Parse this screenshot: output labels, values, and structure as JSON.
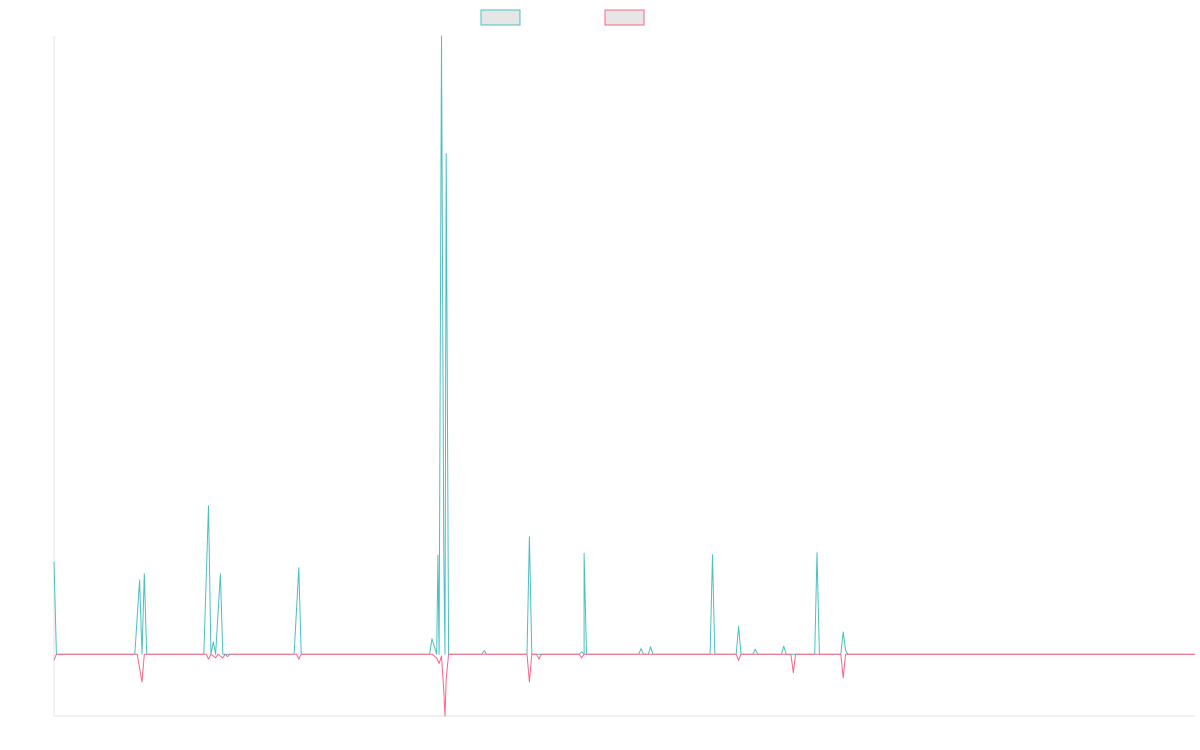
{
  "chart_data": {
    "type": "line",
    "title": "",
    "xlabel": "",
    "ylabel": "",
    "grid": false,
    "legend_placement": "top-center",
    "xlim": [
      0,
      480
    ],
    "ylim": [
      -0.1,
      1.0
    ],
    "colors": {
      "teal": "#4bc0c0",
      "pink": "#ff6384",
      "legend_fill": "#e6e6e6",
      "axis": "#e6e6e6"
    },
    "series": [
      {
        "name": "",
        "color": "#4bc0c0",
        "points": [
          [
            0,
            0.15
          ],
          [
            1,
            0.0
          ],
          [
            5,
            0.0
          ],
          [
            9,
            0.0
          ],
          [
            13,
            0.0
          ],
          [
            34,
            0.0
          ],
          [
            36,
            0.12
          ],
          [
            37,
            0.0
          ],
          [
            38,
            0.13
          ],
          [
            39,
            0.0
          ],
          [
            43,
            0.0
          ],
          [
            63,
            0.0
          ],
          [
            65,
            0.24
          ],
          [
            66,
            0.0
          ],
          [
            67,
            0.02
          ],
          [
            68,
            0.0
          ],
          [
            70,
            0.13
          ],
          [
            71,
            0.0
          ],
          [
            74,
            0.0
          ],
          [
            76,
            0.0
          ],
          [
            101,
            0.0
          ],
          [
            103,
            0.14
          ],
          [
            104,
            0.0
          ],
          [
            118,
            0.0
          ],
          [
            124,
            0.0
          ],
          [
            133,
            0.0
          ],
          [
            158,
            0.0
          ],
          [
            159,
            0.025
          ],
          [
            161,
            0.0
          ],
          [
            161.5,
            0.16
          ],
          [
            162,
            0.0
          ],
          [
            163,
            1.0
          ],
          [
            164,
            0.16
          ],
          [
            164.5,
            0.0
          ],
          [
            165,
            0.81
          ],
          [
            166,
            0.0
          ],
          [
            180,
            0.0
          ],
          [
            181,
            0.006
          ],
          [
            182,
            0.0
          ],
          [
            199,
            0.0
          ],
          [
            200,
            0.19
          ],
          [
            201,
            0.0
          ],
          [
            221,
            0.0
          ],
          [
            222,
            0.004
          ],
          [
            223,
            0.0
          ],
          [
            223,
            0.163
          ],
          [
            224,
            0.0
          ],
          [
            246,
            0.0
          ],
          [
            247,
            0.009
          ],
          [
            248,
            0.0
          ],
          [
            250,
            0.0
          ],
          [
            251,
            0.012
          ],
          [
            252,
            0.0
          ],
          [
            276,
            0.0
          ],
          [
            277,
            0.161
          ],
          [
            278,
            0.0
          ],
          [
            287,
            0.0
          ],
          [
            288,
            0.045
          ],
          [
            289,
            0.0
          ],
          [
            294,
            0.0
          ],
          [
            295,
            0.008
          ],
          [
            296,
            0.0
          ],
          [
            306,
            0.0
          ],
          [
            307,
            0.013
          ],
          [
            308,
            0.0
          ],
          [
            320,
            0.0
          ],
          [
            321,
            0.164
          ],
          [
            322,
            0.0
          ],
          [
            331,
            0.0
          ],
          [
            332,
            0.036
          ],
          [
            333,
            0.006
          ],
          [
            334,
            0.0
          ],
          [
            480,
            0.0
          ]
        ]
      },
      {
        "name": "",
        "color": "#ff6384",
        "points": [
          [
            0,
            -0.01
          ],
          [
            1,
            0.0
          ],
          [
            35,
            0.0
          ],
          [
            37,
            -0.045
          ],
          [
            38,
            0.0
          ],
          [
            64,
            0.0
          ],
          [
            65,
            -0.008
          ],
          [
            66,
            0.0
          ],
          [
            68,
            -0.006
          ],
          [
            69,
            0.0
          ],
          [
            71,
            -0.006
          ],
          [
            72,
            0.0
          ],
          [
            73,
            -0.004
          ],
          [
            74,
            0.0
          ],
          [
            102,
            0.0
          ],
          [
            103,
            -0.008
          ],
          [
            104,
            0.0
          ],
          [
            159,
            0.0
          ],
          [
            161,
            -0.006
          ],
          [
            162,
            -0.015
          ],
          [
            163,
            -0.003
          ],
          [
            164,
            -0.06
          ],
          [
            164.5,
            -0.1
          ],
          [
            165,
            -0.04
          ],
          [
            166,
            0.0
          ],
          [
            199,
            0.0
          ],
          [
            200,
            -0.045
          ],
          [
            201,
            0.0
          ],
          [
            203,
            0.0
          ],
          [
            204,
            -0.008
          ],
          [
            205,
            0.0
          ],
          [
            221,
            0.0
          ],
          [
            222,
            -0.006
          ],
          [
            223,
            0.0
          ],
          [
            287,
            0.0
          ],
          [
            288,
            -0.01
          ],
          [
            289,
            0.0
          ],
          [
            310,
            0.0
          ],
          [
            311,
            -0.03
          ],
          [
            312,
            0.0
          ],
          [
            331,
            0.0
          ],
          [
            332,
            -0.038
          ],
          [
            333,
            0.0
          ],
          [
            480,
            0.0
          ]
        ]
      }
    ]
  }
}
